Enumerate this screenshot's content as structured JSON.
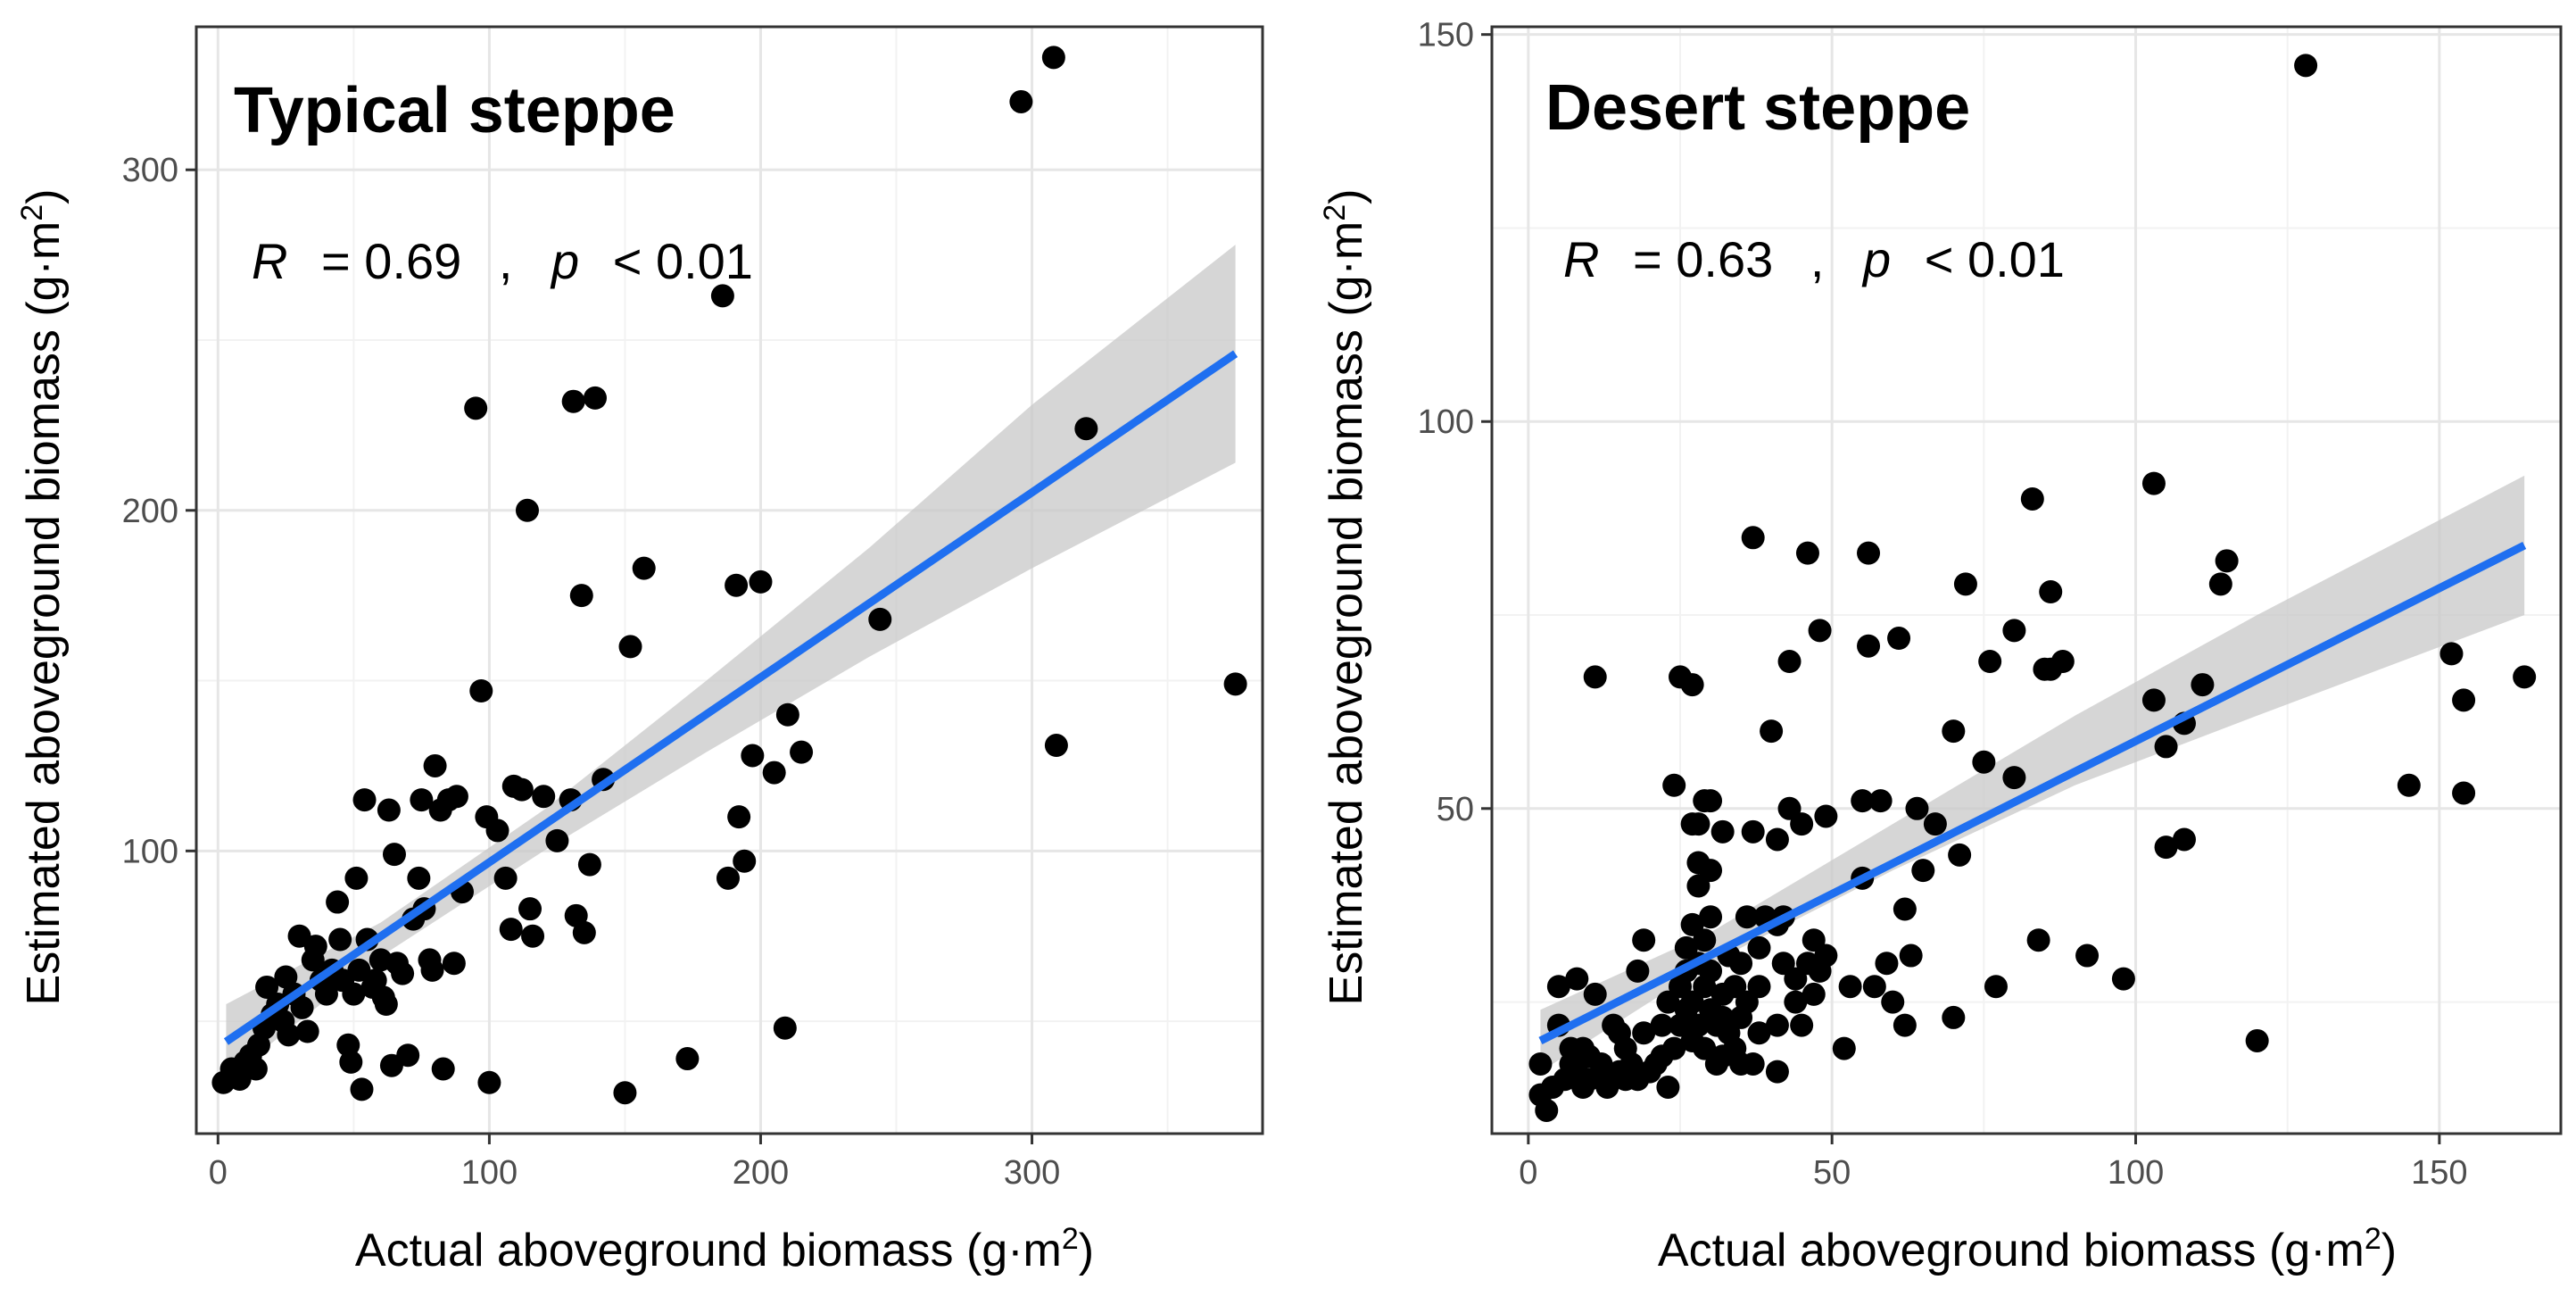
{
  "colors": {
    "point": "#000000",
    "fit_line": "#1f6ff0",
    "ribbon": "#c8c8c8",
    "grid_major": "#e6e6e6",
    "grid_minor": "#f2f2f2",
    "panel_border": "#333333",
    "tick_text": "#4d4d4d"
  },
  "chart_data": [
    {
      "type": "scatter",
      "title": "Typical steppe",
      "stat": {
        "r_label": "R",
        "r_eq": "= 0.69",
        "sep": ",",
        "p_label": "p",
        "p_eq": "< 0.01"
      },
      "xlabel_main": "Actual aboveground biomass (g·m",
      "xlabel_sup": "2",
      "xlabel_close": ")",
      "ylabel_main": "Estimated aboveground biomass (g·m",
      "ylabel_sup": "2",
      "ylabel_close": ")",
      "xlim": [
        -8,
        385
      ],
      "ylim": [
        17,
        342
      ],
      "xticks": [
        0,
        100,
        200,
        300
      ],
      "xtick_labels": [
        "0",
        "100",
        "200",
        "300"
      ],
      "yticks": [
        100,
        200,
        300
      ],
      "ytick_labels": [
        "100",
        "200",
        "300"
      ],
      "grid": true,
      "fit": {
        "x": [
          3,
          375
        ],
        "y": [
          44,
          246
        ]
      },
      "ribbon": {
        "x": [
          3,
          60,
          120,
          180,
          240,
          300,
          375
        ],
        "lower": [
          33,
          69,
          100,
          129,
          157,
          183,
          214
        ],
        "upper": [
          55,
          79,
          112,
          150,
          189,
          231,
          278
        ]
      },
      "points": [
        [
          2,
          32
        ],
        [
          5,
          36
        ],
        [
          8,
          33
        ],
        [
          10,
          38
        ],
        [
          12,
          40
        ],
        [
          14,
          36
        ],
        [
          15,
          43
        ],
        [
          17,
          48
        ],
        [
          18,
          60
        ],
        [
          20,
          52
        ],
        [
          22,
          55
        ],
        [
          24,
          50
        ],
        [
          25,
          63
        ],
        [
          26,
          46
        ],
        [
          28,
          58
        ],
        [
          30,
          75
        ],
        [
          31,
          54
        ],
        [
          33,
          47
        ],
        [
          35,
          68
        ],
        [
          36,
          72
        ],
        [
          38,
          62
        ],
        [
          40,
          58
        ],
        [
          42,
          65
        ],
        [
          44,
          85
        ],
        [
          45,
          74
        ],
        [
          46,
          62
        ],
        [
          48,
          43
        ],
        [
          49,
          38
        ],
        [
          50,
          58
        ],
        [
          51,
          92
        ],
        [
          52,
          65
        ],
        [
          53,
          30
        ],
        [
          54,
          115
        ],
        [
          55,
          74
        ],
        [
          57,
          60
        ],
        [
          58,
          62
        ],
        [
          60,
          68
        ],
        [
          61,
          57
        ],
        [
          62,
          55
        ],
        [
          63,
          112
        ],
        [
          64,
          37
        ],
        [
          65,
          99
        ],
        [
          66,
          67
        ],
        [
          68,
          64
        ],
        [
          70,
          40
        ],
        [
          72,
          80
        ],
        [
          74,
          92
        ],
        [
          75,
          115
        ],
        [
          76,
          83
        ],
        [
          78,
          68
        ],
        [
          79,
          65
        ],
        [
          80,
          125
        ],
        [
          82,
          112
        ],
        [
          83,
          36
        ],
        [
          85,
          115
        ],
        [
          87,
          67
        ],
        [
          88,
          116
        ],
        [
          90,
          88
        ],
        [
          95,
          230
        ],
        [
          97,
          147
        ],
        [
          99,
          110
        ],
        [
          100,
          32
        ],
        [
          103,
          106
        ],
        [
          106,
          92
        ],
        [
          108,
          77
        ],
        [
          109,
          119
        ],
        [
          112,
          118
        ],
        [
          114,
          200
        ],
        [
          115,
          83
        ],
        [
          116,
          75
        ],
        [
          120,
          116
        ],
        [
          125,
          103
        ],
        [
          130,
          115
        ],
        [
          131,
          232
        ],
        [
          132,
          81
        ],
        [
          134,
          175
        ],
        [
          135,
          76
        ],
        [
          137,
          96
        ],
        [
          139,
          233
        ],
        [
          142,
          121
        ],
        [
          150,
          29
        ],
        [
          152,
          160
        ],
        [
          157,
          183
        ],
        [
          173,
          39
        ],
        [
          186,
          263
        ],
        [
          188,
          92
        ],
        [
          191,
          178
        ],
        [
          192,
          110
        ],
        [
          194,
          97
        ],
        [
          197,
          128
        ],
        [
          200,
          179
        ],
        [
          205,
          123
        ],
        [
          209,
          48
        ],
        [
          210,
          140
        ],
        [
          215,
          129
        ],
        [
          244,
          168
        ],
        [
          296,
          320
        ],
        [
          308,
          333
        ],
        [
          309,
          131
        ],
        [
          320,
          224
        ],
        [
          375,
          149
        ]
      ]
    },
    {
      "type": "scatter",
      "title": "Desert steppe",
      "stat": {
        "r_label": "R",
        "r_eq": "= 0.63",
        "sep": ",",
        "p_label": "p",
        "p_eq": "< 0.01"
      },
      "xlabel_main": "Actual aboveground biomass (g·m",
      "xlabel_sup": "2",
      "xlabel_close": ")",
      "ylabel_main": "Estimated aboveground biomass (g·m",
      "ylabel_sup": "2",
      "ylabel_close": ")",
      "xlim": [
        -6,
        170
      ],
      "ylim": [
        8,
        151
      ],
      "xticks": [
        0,
        50,
        100,
        150
      ],
      "xtick_labels": [
        "0",
        "50",
        "100",
        "150"
      ],
      "yticks": [
        50,
        100,
        150
      ],
      "ytick_labels": [
        "50",
        "100",
        "150"
      ],
      "grid": true,
      "fit": {
        "x": [
          2,
          164
        ],
        "y": [
          20,
          84
        ]
      },
      "ribbon": {
        "x": [
          2,
          30,
          60,
          90,
          120,
          164
        ],
        "lower": [
          16,
          30,
          42,
          53,
          62,
          75
        ],
        "upper": [
          24,
          34,
          48,
          62,
          75,
          93
        ]
      },
      "points": [
        [
          2,
          13
        ],
        [
          2,
          17
        ],
        [
          3,
          11
        ],
        [
          4,
          14
        ],
        [
          5,
          22
        ],
        [
          5,
          27
        ],
        [
          6,
          15
        ],
        [
          7,
          17
        ],
        [
          7,
          19
        ],
        [
          8,
          16
        ],
        [
          8,
          28
        ],
        [
          9,
          14
        ],
        [
          9,
          19
        ],
        [
          10,
          15
        ],
        [
          10,
          18
        ],
        [
          11,
          26
        ],
        [
          11,
          67
        ],
        [
          12,
          16
        ],
        [
          12,
          17
        ],
        [
          13,
          14
        ],
        [
          14,
          22
        ],
        [
          15,
          16
        ],
        [
          15,
          21
        ],
        [
          16,
          15
        ],
        [
          16,
          19
        ],
        [
          17,
          17
        ],
        [
          18,
          15
        ],
        [
          18,
          29
        ],
        [
          19,
          21
        ],
        [
          19,
          33
        ],
        [
          20,
          16
        ],
        [
          21,
          17
        ],
        [
          22,
          18
        ],
        [
          22,
          22
        ],
        [
          23,
          14
        ],
        [
          23,
          25
        ],
        [
          24,
          19
        ],
        [
          24,
          53
        ],
        [
          25,
          22
        ],
        [
          25,
          27
        ],
        [
          25,
          67
        ],
        [
          26,
          24
        ],
        [
          26,
          29
        ],
        [
          26,
          32
        ],
        [
          27,
          20
        ],
        [
          27,
          25
        ],
        [
          27,
          35
        ],
        [
          27,
          48
        ],
        [
          27,
          66
        ],
        [
          28,
          22
        ],
        [
          28,
          30
        ],
        [
          28,
          40
        ],
        [
          28,
          43
        ],
        [
          28,
          48
        ],
        [
          29,
          19
        ],
        [
          29,
          27
        ],
        [
          29,
          33
        ],
        [
          29,
          51
        ],
        [
          30,
          24
        ],
        [
          30,
          29
        ],
        [
          30,
          36
        ],
        [
          30,
          42
        ],
        [
          30,
          51
        ],
        [
          31,
          17
        ],
        [
          31,
          22
        ],
        [
          32,
          18
        ],
        [
          32,
          23
        ],
        [
          32,
          26
        ],
        [
          32,
          47
        ],
        [
          33,
          21
        ],
        [
          33,
          31
        ],
        [
          34,
          19
        ],
        [
          34,
          27
        ],
        [
          35,
          17
        ],
        [
          35,
          23
        ],
        [
          35,
          30
        ],
        [
          36,
          25
        ],
        [
          36,
          36
        ],
        [
          37,
          17
        ],
        [
          37,
          47
        ],
        [
          37,
          85
        ],
        [
          38,
          21
        ],
        [
          38,
          27
        ],
        [
          38,
          32
        ],
        [
          39,
          36
        ],
        [
          40,
          60
        ],
        [
          41,
          16
        ],
        [
          41,
          22
        ],
        [
          41,
          35
        ],
        [
          41,
          46
        ],
        [
          42,
          30
        ],
        [
          42,
          36
        ],
        [
          43,
          50
        ],
        [
          43,
          69
        ],
        [
          44,
          25
        ],
        [
          44,
          28
        ],
        [
          45,
          22
        ],
        [
          45,
          48
        ],
        [
          46,
          30
        ],
        [
          46,
          83
        ],
        [
          47,
          26
        ],
        [
          47,
          33
        ],
        [
          48,
          29
        ],
        [
          48,
          73
        ],
        [
          49,
          31
        ],
        [
          49,
          49
        ],
        [
          52,
          19
        ],
        [
          53,
          27
        ],
        [
          55,
          41
        ],
        [
          55,
          51
        ],
        [
          56,
          71
        ],
        [
          56,
          83
        ],
        [
          57,
          27
        ],
        [
          58,
          51
        ],
        [
          59,
          30
        ],
        [
          60,
          25
        ],
        [
          61,
          72
        ],
        [
          62,
          22
        ],
        [
          62,
          37
        ],
        [
          63,
          31
        ],
        [
          64,
          50
        ],
        [
          65,
          42
        ],
        [
          67,
          48
        ],
        [
          70,
          23
        ],
        [
          70,
          60
        ],
        [
          71,
          44
        ],
        [
          72,
          79
        ],
        [
          75,
          56
        ],
        [
          76,
          69
        ],
        [
          77,
          27
        ],
        [
          80,
          54
        ],
        [
          80,
          73
        ],
        [
          83,
          90
        ],
        [
          84,
          33
        ],
        [
          85,
          68
        ],
        [
          86,
          68
        ],
        [
          86,
          78
        ],
        [
          88,
          69
        ],
        [
          92,
          31
        ],
        [
          98,
          28
        ],
        [
          103,
          64
        ],
        [
          103,
          92
        ],
        [
          105,
          45
        ],
        [
          105,
          58
        ],
        [
          108,
          46
        ],
        [
          108,
          61
        ],
        [
          111,
          66
        ],
        [
          114,
          79
        ],
        [
          115,
          82
        ],
        [
          120,
          20
        ],
        [
          128,
          146
        ],
        [
          145,
          53
        ],
        [
          152,
          70
        ],
        [
          154,
          52
        ],
        [
          154,
          64
        ],
        [
          164,
          67
        ]
      ]
    }
  ]
}
